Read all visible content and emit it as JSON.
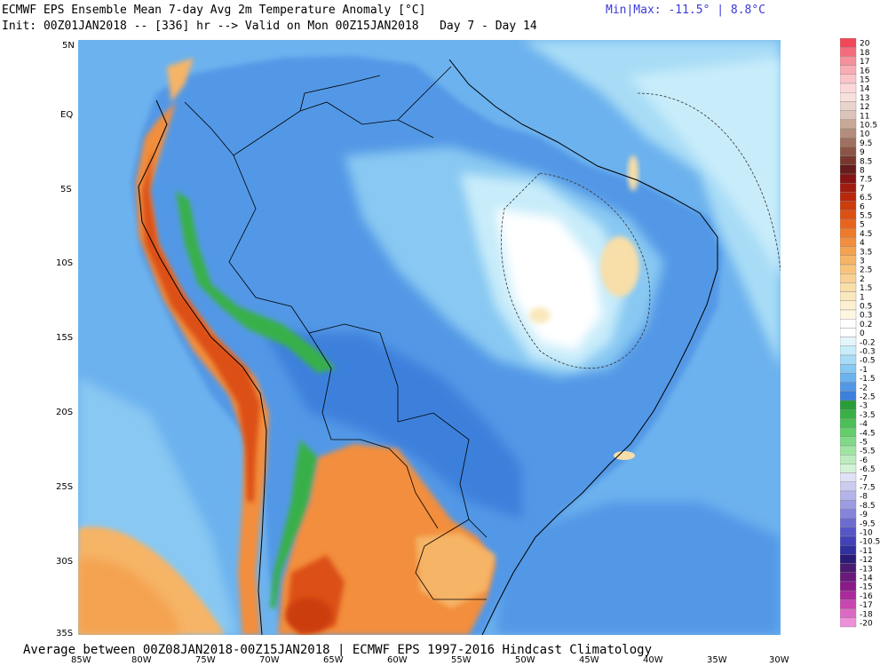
{
  "header": {
    "title": "ECMWF EPS Ensemble Mean 7-day Avg 2m Temperature Anomaly [°C]",
    "minmax": "Min|Max: -11.5° | 8.8°C",
    "init": "Init: 00Z01JAN2018 -- [336] hr --> Valid on Mon 00Z15JAN2018   Day 7 - Day 14"
  },
  "footer": "Average between 00Z08JAN2018-00Z15JAN2018 | ECMWF EPS 1997-2016 Hindcast Climatology",
  "map": {
    "lat_labels": [
      "5N",
      "EQ",
      "5S",
      "10S",
      "15S",
      "20S",
      "25S",
      "30S",
      "35S"
    ],
    "lon_labels": [
      "85W",
      "80W",
      "75W",
      "70W",
      "65W",
      "60W",
      "55W",
      "50W",
      "45W",
      "40W",
      "35W",
      "30W"
    ]
  },
  "colorbar": {
    "labels": [
      "20",
      "18",
      "17",
      "16",
      "15",
      "14",
      "13",
      "12",
      "11",
      "10.5",
      "10",
      "9.5",
      "9",
      "8.5",
      "8",
      "7.5",
      "7",
      "6.5",
      "6",
      "5.5",
      "5",
      "4.5",
      "4",
      "3.5",
      "3",
      "2.5",
      "2",
      "1.5",
      "1",
      "0.5",
      "0.3",
      "0.2",
      "0",
      "-0.2",
      "-0.3",
      "-0.5",
      "-1",
      "-1.5",
      "-2",
      "-2.5",
      "-3",
      "-3.5",
      "-4",
      "-4.5",
      "-5",
      "-5.5",
      "-6",
      "-6.5",
      "-7",
      "-7.5",
      "-8",
      "-8.5",
      "-9",
      "-9.5",
      "-10",
      "-10.5",
      "-11",
      "-12",
      "-13",
      "-14",
      "-15",
      "-16",
      "-17",
      "-18",
      "-20"
    ],
    "colors": [
      "#f04858",
      "#f46c7c",
      "#f6909c",
      "#f8acb4",
      "#fac4c8",
      "#fcd8da",
      "#f8e0dc",
      "#e8d4cc",
      "#dcc4b8",
      "#c8a898",
      "#b48c7c",
      "#a07060",
      "#8c5444",
      "#783830",
      "#641c1c",
      "#841414",
      "#a01c10",
      "#b8280c",
      "#cc3c0c",
      "#dc5014",
      "#e8641c",
      "#ee7a2a",
      "#f28e3e",
      "#f4a250",
      "#f6b466",
      "#f8c47c",
      "#f8d294",
      "#f8dea8",
      "#f8e8bc",
      "#fcf0d0",
      "#fff6e2",
      "#ffffff",
      "#ffffff",
      "#e4f6fc",
      "#c8ecfa",
      "#a8dcf6",
      "#88c8f2",
      "#6cb2ee",
      "#5298e6",
      "#3c80dc",
      "#2a9c38",
      "#38b048",
      "#4cc058",
      "#64ce6c",
      "#82da88",
      "#a0e4a4",
      "#bcecbe",
      "#d4f2d6",
      "#e0e0f6",
      "#ccccf0",
      "#b4b4ea",
      "#9c9ce2",
      "#8484da",
      "#6c6cd0",
      "#5656c6",
      "#4242b8",
      "#3030a0",
      "#2a1a7a",
      "#4a1a70",
      "#6a1a78",
      "#8a1a88",
      "#aa2a9c",
      "#c846b0",
      "#dc6ac4",
      "#ec90d8"
    ]
  }
}
